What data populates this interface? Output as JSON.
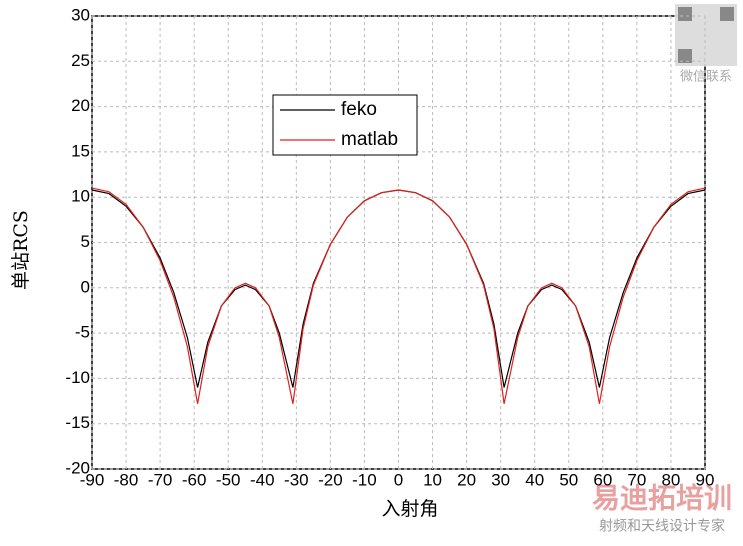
{
  "chart_data": {
    "type": "line",
    "x_label": "入射角",
    "y_label": "单站RCS",
    "x": [
      -90,
      -85,
      -80,
      -75,
      -70,
      -66,
      -62,
      -59,
      -56,
      -52,
      -48,
      -45,
      -42,
      -38,
      -35,
      -31,
      -28,
      -25,
      -20,
      -15,
      -10,
      -5,
      0,
      5,
      10,
      15,
      20,
      25,
      28,
      31,
      35,
      38,
      42,
      45,
      48,
      52,
      56,
      59,
      62,
      66,
      70,
      75,
      80,
      85,
      90
    ],
    "series": [
      {
        "name": "feko",
        "color": "#000000",
        "values": [
          10.8,
          10.4,
          9.0,
          6.7,
          3.3,
          -0.5,
          -5.5,
          -11,
          -6,
          -2,
          -0.2,
          0.3,
          -0.2,
          -2,
          -5,
          -11,
          -4,
          0.5,
          4.8,
          7.8,
          9.6,
          10.5,
          10.8,
          10.5,
          9.6,
          7.8,
          4.8,
          0.5,
          -4,
          -11,
          -5,
          -2,
          -0.2,
          0.3,
          -0.2,
          -2,
          -6,
          -11,
          -5.5,
          -0.5,
          3.3,
          6.7,
          9.0,
          10.4,
          10.8
        ]
      },
      {
        "name": "matlab",
        "color": "#e0201c",
        "values": [
          11,
          10.6,
          9.2,
          6.7,
          3,
          -1,
          -6.5,
          -12.8,
          -6.5,
          -2,
          0,
          0.5,
          0,
          -2,
          -5.5,
          -12.8,
          -4.5,
          0.3,
          4.8,
          7.8,
          9.6,
          10.5,
          10.8,
          10.5,
          9.6,
          7.8,
          4.8,
          0.3,
          -4.5,
          -12.8,
          -5.5,
          -2,
          0,
          0.5,
          0,
          -2,
          -6.5,
          -12.8,
          -6.5,
          -1,
          3,
          6.7,
          9.2,
          10.6,
          11
        ]
      }
    ],
    "xlim": [
      -90,
      90
    ],
    "xticks": [
      -90,
      -80,
      -70,
      -60,
      -50,
      -40,
      -30,
      -20,
      -10,
      0,
      10,
      20,
      30,
      40,
      50,
      60,
      70,
      80,
      90
    ],
    "ylim": [
      -20,
      30
    ],
    "yticks": [
      -20,
      -15,
      -10,
      -5,
      0,
      5,
      10,
      15,
      20,
      25,
      30
    ],
    "grid": true,
    "annotations": [
      "微信联系",
      "易迪拓培训",
      "射频和天线设计专家"
    ]
  }
}
